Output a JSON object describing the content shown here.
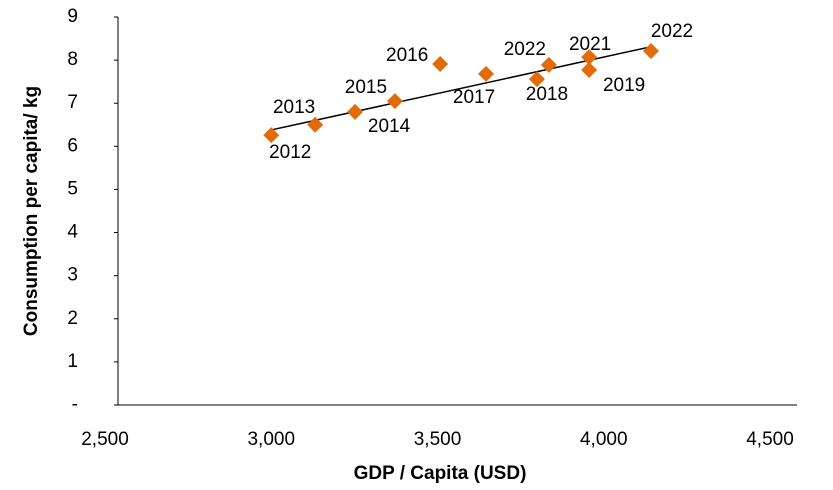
{
  "chart_data": {
    "type": "scatter",
    "x_label": "GDP / Capita (USD)",
    "y_label": "Consumption per capita/ kg",
    "series": [
      {
        "color": "#e36c0a",
        "x": [
          3000,
          3132,
          3252,
          3372,
          3508,
          3646,
          3799,
          3835,
          3956,
          3956,
          4142
        ],
        "values": [
          6.26,
          6.5,
          6.8,
          7.05,
          7.91,
          7.68,
          7.56,
          7.89,
          8.07,
          7.77,
          8.21
        ],
        "point_labels": [
          "2012",
          "2013",
          "2014",
          "2015",
          "2016",
          "2017",
          "2018",
          "2022",
          "2021",
          "2019",
          "2022"
        ]
      }
    ],
    "trendline": {
      "x": [
        3000,
        4142
      ],
      "values": [
        6.38,
        8.31
      ],
      "color": "#000000"
    },
    "xlim": [
      2500,
      4500
    ],
    "xticks": [
      {
        "value": 2500,
        "label": "2,500"
      },
      {
        "value": 3000,
        "label": "3,000"
      },
      {
        "value": 3500,
        "label": "3,500"
      },
      {
        "value": 4000,
        "label": "4,000"
      },
      {
        "value": 4500,
        "label": "4,500"
      }
    ],
    "ylim": [
      0,
      9
    ],
    "yticks": [
      {
        "value": 0,
        "label": "-"
      },
      1,
      2,
      3,
      4,
      5,
      6,
      7,
      8,
      9
    ],
    "grid": false
  }
}
